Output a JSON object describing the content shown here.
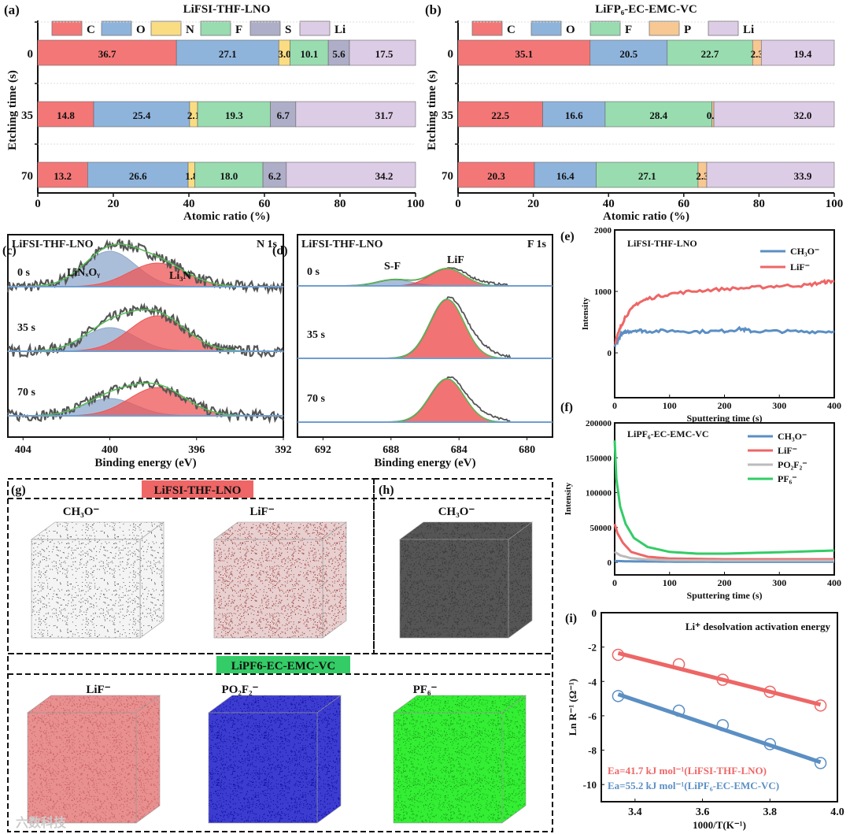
{
  "colors": {
    "C": "#f47777",
    "O": "#8fb4dc",
    "N": "#fadd82",
    "F": "#98dcb0",
    "S": "#aeaec8",
    "Li": "#ddcce6",
    "P": "#f8c892",
    "red": "#ee6666",
    "blue": "#5b8fc4",
    "gray": "#bbbbbb",
    "green": "#33cc66"
  },
  "chart_data": [
    {
      "id": "a",
      "type": "bar",
      "panel_label": "(a)",
      "title": "LiFSI-THF-LNO",
      "xlabel": "Atomic ratio (%)",
      "ylabel": "Etching time (s)",
      "xlim": [
        0,
        100
      ],
      "xticks": [
        "0",
        "20",
        "40",
        "60",
        "80",
        "100"
      ],
      "categories": [
        "0",
        "35",
        "70"
      ],
      "series": [
        {
          "name": "C",
          "values": [
            36.7,
            14.8,
            13.2
          ]
        },
        {
          "name": "O",
          "values": [
            27.1,
            25.4,
            26.6
          ]
        },
        {
          "name": "N",
          "values": [
            3.0,
            2.1,
            1.8
          ]
        },
        {
          "name": "F",
          "values": [
            10.1,
            19.3,
            18.0
          ]
        },
        {
          "name": "S",
          "values": [
            5.6,
            6.7,
            6.2
          ]
        },
        {
          "name": "Li",
          "values": [
            17.5,
            31.7,
            34.2
          ]
        }
      ]
    },
    {
      "id": "b",
      "type": "bar",
      "panel_label": "(b)",
      "title": "LiFP₆-EC-EMC-VC",
      "xlabel": "Atomic ratio (%)",
      "ylabel": "Etching time (s)",
      "xlim": [
        0,
        100
      ],
      "xticks": [
        "0",
        "20",
        "40",
        "60",
        "80",
        "100"
      ],
      "categories": [
        "0",
        "35",
        "70"
      ],
      "series": [
        {
          "name": "C",
          "values": [
            35.1,
            22.5,
            20.3
          ]
        },
        {
          "name": "O",
          "values": [
            20.5,
            16.6,
            16.4
          ]
        },
        {
          "name": "F",
          "values": [
            22.7,
            28.4,
            27.1
          ]
        },
        {
          "name": "P",
          "values": [
            2.3,
            0.5,
            2.3
          ]
        },
        {
          "name": "Li",
          "values": [
            19.4,
            32.0,
            33.9
          ]
        }
      ]
    },
    {
      "id": "c",
      "type": "line",
      "panel_label": "(c)",
      "title": "LiFSI-THF-LNO",
      "subtitle": "N 1s",
      "xlabel": "Binding energy (eV)",
      "xlim": [
        404.7,
        392
      ],
      "xticks": [
        404,
        400,
        396,
        392
      ],
      "peaks": [
        {
          "name": "LiNₓOᵧ",
          "center": 400.0,
          "width": 1.2,
          "color": "#8fa8cc"
        },
        {
          "name": "Li₃N",
          "center": 397.8,
          "width": 1.3,
          "color": "#ee5555"
        }
      ],
      "spectra": [
        {
          "label": "0 s",
          "amplitudes": [
            45,
            30
          ]
        },
        {
          "label": "35 s",
          "amplitudes": [
            30,
            45
          ]
        },
        {
          "label": "70 s",
          "amplitudes": [
            22,
            36
          ]
        }
      ]
    },
    {
      "id": "d",
      "type": "line",
      "panel_label": "(d)",
      "title": "LiFSI-THF-LNO",
      "subtitle": "F 1s",
      "xlabel": "Binding energy (eV)",
      "xlim": [
        693.5,
        678.5
      ],
      "xticks": [
        692,
        688,
        684,
        680
      ],
      "peaks": [
        {
          "name": "S-F",
          "center": 687.8,
          "width": 1.0,
          "color": "#8fa8cc"
        },
        {
          "name": "LiF",
          "center": 684.7,
          "width": 1.0,
          "color": "#ee4444"
        }
      ],
      "spectra": [
        {
          "label": "0 s",
          "amplitudes": [
            8,
            22
          ]
        },
        {
          "label": "35 s",
          "amplitudes": [
            0,
            75
          ]
        },
        {
          "label": "70 s",
          "amplitudes": [
            0,
            55
          ]
        }
      ]
    },
    {
      "id": "e",
      "type": "line",
      "panel_label": "(e)",
      "title": "LiFSI-THF-LNO",
      "xlabel": "Sputtering time (s)",
      "ylabel": "Intensity",
      "xlim": [
        0,
        400
      ],
      "ylim": [
        -730,
        2000
      ],
      "xticks": [
        0,
        100,
        200,
        300,
        400
      ],
      "yticks": [
        0,
        1000,
        2000
      ],
      "series": [
        {
          "name": "CH₃O⁻",
          "color": "#5b8fc4",
          "x": [
            0,
            10,
            20,
            40,
            60,
            100,
            150,
            200,
            230,
            250,
            300,
            350,
            400
          ],
          "y": [
            100,
            280,
            340,
            370,
            350,
            360,
            345,
            355,
            390,
            350,
            350,
            345,
            350
          ]
        },
        {
          "name": "LiF⁻",
          "color": "#ee6666",
          "x": [
            0,
            10,
            20,
            40,
            60,
            100,
            150,
            200,
            250,
            300,
            350,
            380,
            400
          ],
          "y": [
            150,
            400,
            600,
            800,
            880,
            960,
            1010,
            1040,
            1060,
            1090,
            1100,
            1150,
            1170
          ]
        }
      ]
    },
    {
      "id": "f",
      "type": "line",
      "panel_label": "(f)",
      "title": "LiPF₆-EC-EMC-VC",
      "xlabel": "Sputtering time (s)",
      "ylabel": "Intensity",
      "xlim": [
        0,
        400
      ],
      "ylim": [
        -18000,
        200000
      ],
      "xticks": [
        0,
        100,
        200,
        300,
        400
      ],
      "yticks": [
        0,
        50000,
        100000,
        150000,
        200000
      ],
      "series": [
        {
          "name": "CH₃O⁻",
          "color": "#5b8fc4",
          "x": [
            0,
            20,
            100,
            200,
            300,
            400
          ],
          "y": [
            2000,
            1500,
            1000,
            800,
            800,
            800
          ]
        },
        {
          "name": "LiF⁻",
          "color": "#ee6666",
          "x": [
            0,
            5,
            15,
            30,
            60,
            100,
            200,
            300,
            400
          ],
          "y": [
            55000,
            42000,
            28000,
            15000,
            8000,
            5500,
            4500,
            4500,
            4500
          ]
        },
        {
          "name": "PO₂F₂⁻",
          "color": "#bbbbbb",
          "x": [
            0,
            10,
            30,
            60,
            100,
            200,
            400
          ],
          "y": [
            15000,
            10000,
            6000,
            4000,
            3000,
            2500,
            2500
          ]
        },
        {
          "name": "PF₆⁻",
          "color": "#33cc66",
          "x": [
            0,
            3,
            10,
            20,
            35,
            60,
            100,
            150,
            200,
            300,
            400
          ],
          "y": [
            175000,
            120000,
            80000,
            55000,
            35000,
            22000,
            15000,
            12500,
            12500,
            14500,
            17000
          ]
        }
      ]
    },
    {
      "id": "i",
      "type": "scatter",
      "panel_label": "(i)",
      "title": "Li⁺ desolvation activation energy",
      "xlabel": "1000/T(K⁻¹)",
      "ylabel": "Ln R⁻¹ (Ω⁻¹)",
      "xlim": [
        3.3,
        4.0
      ],
      "ylim": [
        -11,
        0
      ],
      "xticks": [
        3.4,
        3.6,
        3.8,
        4.0
      ],
      "yticks": [
        0,
        -2,
        -4,
        -6,
        -8,
        -10
      ],
      "series": [
        {
          "name": "Ea=41.7 kJ mol⁻¹(LiFSI-THF-LNO)",
          "color": "#ee6666",
          "x": [
            3.35,
            3.53,
            3.66,
            3.8,
            3.95
          ],
          "y": [
            -2.45,
            -3.0,
            -3.9,
            -4.6,
            -5.4
          ],
          "fit": [
            [
              3.35,
              -2.35
            ],
            [
              3.95,
              -5.35
            ]
          ]
        },
        {
          "name": "Ea=55.2 kJ mol⁻¹(LiPF₆-EC-EMC-VC)",
          "color": "#5b8fc4",
          "x": [
            3.35,
            3.53,
            3.66,
            3.8,
            3.95
          ],
          "y": [
            -4.85,
            -5.7,
            -6.55,
            -7.65,
            -8.75
          ],
          "fit": [
            [
              3.35,
              -4.75
            ],
            [
              3.95,
              -8.7
            ]
          ]
        }
      ]
    }
  ],
  "tof": {
    "g_label": "(g)",
    "h_label": "(h)",
    "group1": "LiFSI-THF-LNO",
    "group2": "LiPF6-EC-EMC-VC",
    "cubes": [
      {
        "label": "CH₃O⁻",
        "color": "#555555",
        "base": "#f4f4f4",
        "density": 0.35
      },
      {
        "label": "LiF⁻",
        "color": "#9a3a3a",
        "base": "#e8d0d0",
        "density": 0.55
      },
      {
        "label": "CH₃O⁻",
        "color": "#333333",
        "base": "#555555",
        "density": 0.7
      },
      {
        "label": "LiF⁻",
        "color": "#c95b5b",
        "base": "#e89090",
        "density": 0.6
      },
      {
        "label": "PO₂F₂⁻",
        "color": "#0a0a9a",
        "base": "#3c3cd0",
        "density": 0.6
      },
      {
        "label": "PF₆⁻",
        "color": "#1a9a1a",
        "base": "#33ee33",
        "density": 0.6
      }
    ]
  },
  "watermark": "六数科技"
}
